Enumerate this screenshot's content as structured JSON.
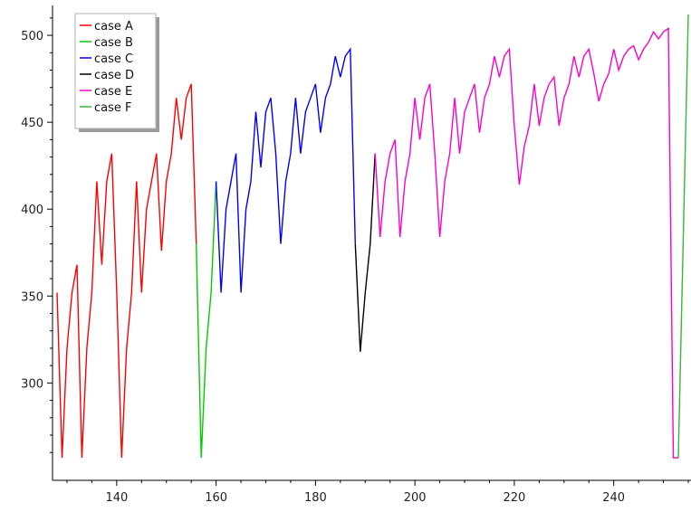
{
  "chart_data": {
    "type": "line",
    "title": "",
    "xlabel": "",
    "ylabel": "",
    "xlim": [
      125,
      255
    ],
    "ylim": [
      252,
      520
    ],
    "grid": false,
    "legend_position": "top-left",
    "x_ticks": [
      140,
      160,
      180,
      200,
      220,
      240
    ],
    "y_ticks": [
      300,
      350,
      400,
      450,
      500
    ],
    "x_tick_labels": [
      "140",
      "160",
      "180",
      "200",
      "220",
      "240"
    ],
    "y_tick_labels": [
      "300",
      "350",
      "400",
      "450",
      "500"
    ],
    "series": [
      {
        "name": "case A",
        "color": "#ff0000",
        "x": [
          128,
          129,
          130,
          131,
          132,
          133,
          134,
          135,
          136,
          137,
          138,
          139,
          140,
          141,
          142,
          143,
          144,
          145,
          146,
          147,
          148,
          149,
          150,
          151,
          152,
          153,
          154,
          155,
          156
        ],
        "y": [
          352,
          257,
          320,
          352,
          368,
          257,
          320,
          352,
          416,
          368,
          416,
          432,
          352,
          257,
          320,
          352,
          416,
          352,
          400,
          416,
          432,
          376,
          416,
          432,
          464,
          440,
          464,
          472,
          380
        ]
      },
      {
        "name": "case B",
        "color": "#00cc00",
        "x": [
          156,
          157,
          158,
          159,
          160
        ],
        "y": [
          380,
          257,
          320,
          352,
          416
        ]
      },
      {
        "name": "case C",
        "color": "#0000ff",
        "x": [
          160,
          161,
          162,
          163,
          164,
          165,
          166,
          167,
          168,
          169,
          170,
          171,
          172,
          173,
          174,
          175,
          176,
          177,
          178,
          179,
          180,
          181,
          182,
          183,
          184,
          185,
          186,
          187,
          188
        ],
        "y": [
          416,
          352,
          400,
          416,
          432,
          352,
          400,
          416,
          456,
          424,
          456,
          464,
          432,
          380,
          416,
          432,
          464,
          432,
          456,
          464,
          472,
          444,
          464,
          472,
          488,
          476,
          488,
          492,
          380
        ]
      },
      {
        "name": "case D",
        "color": "#000000",
        "x": [
          188,
          189,
          190,
          191,
          192
        ],
        "y": [
          380,
          318,
          352,
          380,
          432
        ]
      },
      {
        "name": "case E",
        "color": "#ff00cc",
        "x": [
          192,
          193,
          194,
          195,
          196,
          197,
          198,
          199,
          200,
          201,
          202,
          203,
          204,
          205,
          206,
          207,
          208,
          209,
          210,
          211,
          212,
          213,
          214,
          215,
          216,
          217,
          218,
          219,
          220,
          221,
          222,
          223,
          224,
          225,
          226,
          227,
          228,
          229,
          230,
          231,
          232,
          233,
          234,
          235,
          236,
          237,
          238,
          239,
          240,
          241,
          242,
          243,
          244,
          245,
          246,
          247,
          248,
          249,
          250,
          251,
          252,
          253
        ],
        "y": [
          432,
          384,
          416,
          432,
          440,
          384,
          416,
          432,
          464,
          440,
          464,
          472,
          432,
          384,
          416,
          432,
          464,
          432,
          456,
          464,
          472,
          444,
          464,
          472,
          488,
          476,
          488,
          492,
          448,
          414,
          436,
          448,
          472,
          448,
          464,
          472,
          476,
          448,
          464,
          472,
          488,
          476,
          488,
          492,
          478,
          462,
          472,
          478,
          492,
          480,
          488,
          492,
          494,
          486,
          492,
          496,
          502,
          498,
          502,
          504,
          257,
          257
        ]
      },
      {
        "name": "case F",
        "color": "#33bb33",
        "x": [
          253,
          255
        ],
        "y": [
          257,
          512
        ]
      }
    ]
  }
}
